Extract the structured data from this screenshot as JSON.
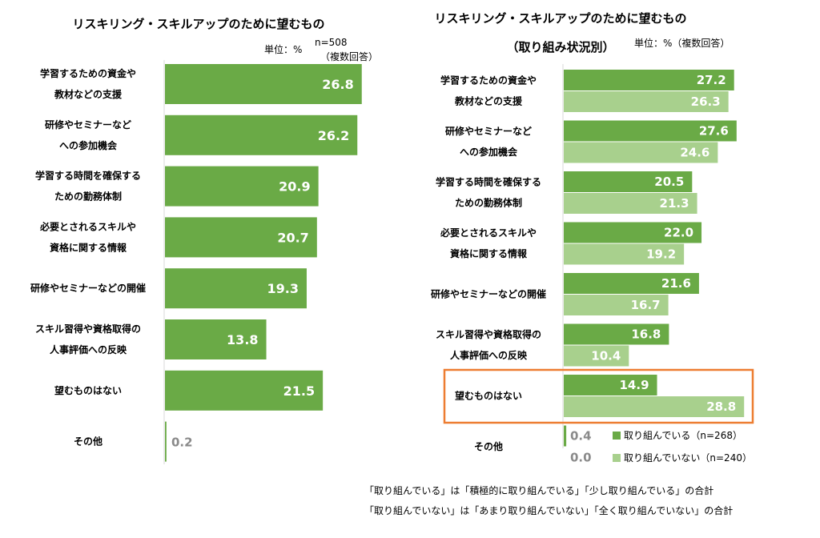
{
  "colors": {
    "dark_green": "#6aaa46",
    "light_green": "#a8d08d",
    "zero_value": "#8a8a8a",
    "highlight_box": "#ed7d31"
  },
  "chart_data": [
    {
      "type": "bar",
      "orientation": "horizontal",
      "title": "リスキリング・スキルアップのために望むもの",
      "unit": "単位：%",
      "sample": "n=508",
      "note": "（複数回答）",
      "categories": [
        [
          "学習するための資金や",
          "教材などの支援"
        ],
        [
          "研修やセミナーなど",
          "への参加機会"
        ],
        [
          "学習する時間を確保する",
          "ための勤務体制"
        ],
        [
          "必要とされるスキルや",
          "資格に関する情報"
        ],
        [
          "研修やセミナーなどの開催"
        ],
        [
          "スキル習得や資格取得の",
          "人事評価への反映"
        ],
        [
          "望むものはない"
        ],
        [
          "その他"
        ]
      ],
      "values": [
        26.8,
        26.2,
        20.9,
        20.7,
        19.3,
        13.8,
        21.5,
        0.2
      ],
      "labels": [
        "26.8",
        "26.2",
        "20.9",
        "20.7",
        "19.3",
        "13.8",
        "21.5",
        "0.2"
      ]
    },
    {
      "type": "bar",
      "orientation": "horizontal",
      "title": "リスキリング・スキルアップのために望むもの",
      "subtitle": "（取り組み状況別）",
      "unit": "単位：%（複数回答）",
      "categories": [
        [
          "学習するための資金や",
          "教材などの支援"
        ],
        [
          "研修やセミナーなど",
          "への参加機会"
        ],
        [
          "学習する時間を確保する",
          "ための勤務体制"
        ],
        [
          "必要とされるスキルや",
          "資格に関する情報"
        ],
        [
          "研修やセミナーなどの開催"
        ],
        [
          "スキル習得や資格取得の",
          "人事評価への反映"
        ],
        [
          "望むものはない"
        ],
        [
          "その他"
        ]
      ],
      "series": [
        {
          "name": "取り組んでいる（n=268）",
          "values": [
            27.2,
            27.6,
            20.5,
            22.0,
            21.6,
            16.8,
            14.9,
            0.4
          ],
          "labels": [
            "27.2",
            "27.6",
            "20.5",
            "22.0",
            "21.6",
            "16.8",
            "14.9",
            "0.4"
          ]
        },
        {
          "name": "取り組んでいない（n=240）",
          "values": [
            26.3,
            24.6,
            21.3,
            19.2,
            16.7,
            10.4,
            28.8,
            0.0
          ],
          "labels": [
            "26.3",
            "24.6",
            "21.3",
            "19.2",
            "16.7",
            "10.4",
            "28.8",
            "0.0"
          ]
        }
      ],
      "highlighted_category": "望むものはない"
    }
  ],
  "footnotes": [
    "「取り組んでいる」は「積極的に取り組んでいる」「少し取り組んでいる」の合計",
    "「取り組んでいない」は「あまり取り組んでいない」「全く取り組んでいない」の合計"
  ]
}
